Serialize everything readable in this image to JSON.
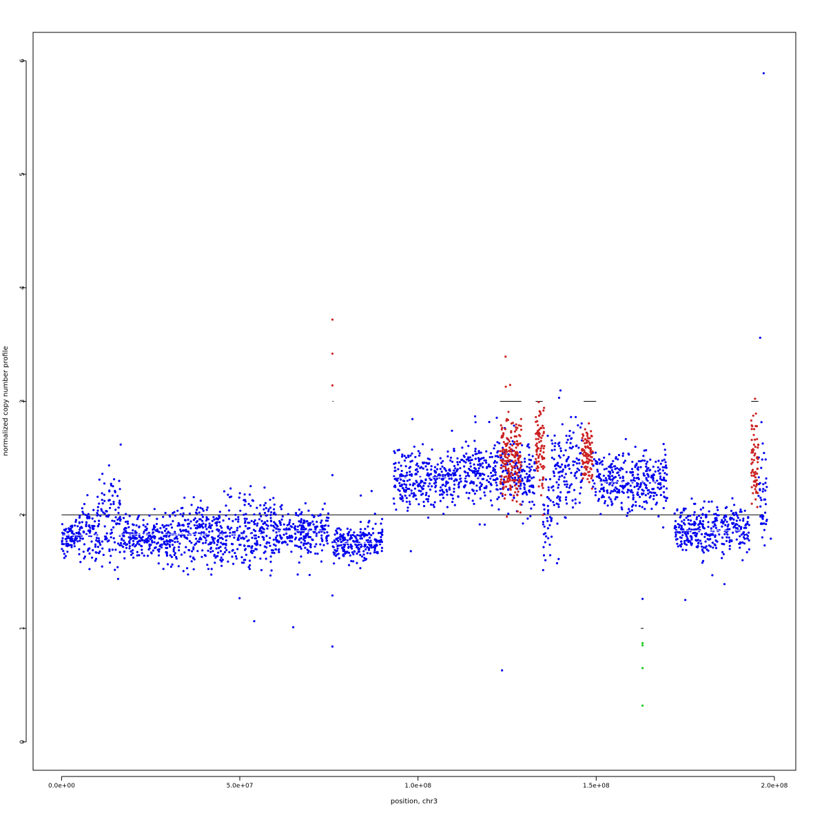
{
  "chart_data": {
    "type": "scatter",
    "title": "",
    "xlabel": "position, chr3",
    "ylabel": "normalized copy number profile",
    "xlim": [
      -8000000,
      206000000
    ],
    "ylim": [
      -0.25,
      6.25
    ],
    "x_ticks": [
      0,
      50000000,
      100000000,
      150000000,
      200000000
    ],
    "x_tick_labels": [
      "0.0e+00",
      "5.0e+07",
      "1.0e+08",
      "1.5e+08",
      "2.0e+08"
    ],
    "y_ticks": [
      0,
      1,
      2,
      3,
      4,
      5,
      6
    ],
    "y_tick_labels": [
      "0",
      "1",
      "2",
      "3",
      "4",
      "5",
      "6"
    ],
    "grid": false,
    "colors": {
      "normal": "#0000ee",
      "gain": "#cc2222",
      "loss": "#22cc22",
      "copy_number_line": "#000000",
      "median_line": "#ffffff"
    },
    "segments_blue": [
      {
        "x0": 0,
        "x1": 5000000,
        "level": 1.8,
        "sd": 0.08
      },
      {
        "x0": 5000000,
        "x1": 10000000,
        "level": 1.85,
        "sd": 0.12
      },
      {
        "x0": 10000000,
        "x1": 17000000,
        "level": 1.95,
        "sd": 0.18
      },
      {
        "x0": 17000000,
        "x1": 30000000,
        "level": 1.8,
        "sd": 0.08
      },
      {
        "x0": 30000000,
        "x1": 40000000,
        "level": 1.85,
        "sd": 0.13
      },
      {
        "x0": 40000000,
        "x1": 50000000,
        "level": 1.82,
        "sd": 0.14
      },
      {
        "x0": 50000000,
        "x1": 60000000,
        "level": 1.85,
        "sd": 0.15
      },
      {
        "x0": 60000000,
        "x1": 75000000,
        "level": 1.85,
        "sd": 0.1
      },
      {
        "x0": 76000000,
        "x1": 90000000,
        "level": 1.75,
        "sd": 0.08
      },
      {
        "x0": 93000000,
        "x1": 110000000,
        "level": 2.3,
        "sd": 0.14
      },
      {
        "x0": 110000000,
        "x1": 122000000,
        "level": 2.38,
        "sd": 0.13
      },
      {
        "x0": 122000000,
        "x1": 128000000,
        "level": 2.4,
        "sd": 0.18
      },
      {
        "x0": 128000000,
        "x1": 133000000,
        "level": 2.3,
        "sd": 0.15
      },
      {
        "x0": 135000000,
        "x1": 137500000,
        "level": 1.95,
        "sd": 0.2
      },
      {
        "x0": 137500000,
        "x1": 146000000,
        "level": 2.4,
        "sd": 0.2
      },
      {
        "x0": 149000000,
        "x1": 162000000,
        "level": 2.3,
        "sd": 0.13
      },
      {
        "x0": 162000000,
        "x1": 170000000,
        "level": 2.28,
        "sd": 0.14
      },
      {
        "x0": 172000000,
        "x1": 193000000,
        "level": 1.87,
        "sd": 0.1
      },
      {
        "x0": 195500000,
        "x1": 198000000,
        "level": 2.2,
        "sd": 0.2
      }
    ],
    "segments_red": [
      {
        "x0": 123000000,
        "x1": 129000000,
        "level": 2.5,
        "sd": 0.2
      },
      {
        "x0": 133000000,
        "x1": 135500000,
        "level": 2.6,
        "sd": 0.2
      },
      {
        "x0": 146000000,
        "x1": 149000000,
        "level": 2.55,
        "sd": 0.14
      },
      {
        "x0": 193500000,
        "x1": 195500000,
        "level": 2.45,
        "sd": 0.2
      }
    ],
    "outliers_blue": [
      {
        "x": 65000000,
        "y": 1.01
      },
      {
        "x": 76000000,
        "y": 0.84
      },
      {
        "x": 76000000,
        "y": 1.29
      },
      {
        "x": 76000000,
        "y": 2.35
      },
      {
        "x": 87000000,
        "y": 2.21
      },
      {
        "x": 98000000,
        "y": 1.68
      },
      {
        "x": 163000000,
        "y": 1.26
      },
      {
        "x": 175000000,
        "y": 1.25
      },
      {
        "x": 186000000,
        "y": 1.39
      },
      {
        "x": 196000000,
        "y": 3.56
      },
      {
        "x": 197000000,
        "y": 5.89
      },
      {
        "x": 199000000,
        "y": 1.79
      }
    ],
    "outliers_red": [
      {
        "x": 76000000,
        "y": 3.72
      },
      {
        "x": 76000000,
        "y": 3.42
      },
      {
        "x": 76000000,
        "y": 3.14
      }
    ],
    "outliers_green": [
      {
        "x": 163000000,
        "y": 0.32
      },
      {
        "x": 163000000,
        "y": 0.65
      },
      {
        "x": 163000000,
        "y": 0.85
      },
      {
        "x": 163000000,
        "y": 0.87
      }
    ],
    "copy_number_lines": [
      {
        "x0": 0,
        "x1": 197000000,
        "y": 2
      },
      {
        "x0": 123000000,
        "x1": 129000000,
        "y": 3
      },
      {
        "x0": 133000000,
        "x1": 135000000,
        "y": 3
      },
      {
        "x0": 146500000,
        "x1": 150000000,
        "y": 3
      },
      {
        "x0": 193500000,
        "x1": 195500000,
        "y": 3
      },
      {
        "x0": 76000000,
        "x1": 76300000,
        "y": 3
      },
      {
        "x0": 162500000,
        "x1": 163300000,
        "y": 1
      }
    ],
    "median_lines": [
      {
        "x0": 0,
        "x1": 17000000,
        "y": 1.82
      },
      {
        "x0": 17000000,
        "x1": 60000000,
        "y": 1.83
      },
      {
        "x0": 60000000,
        "x1": 75000000,
        "y": 1.86
      },
      {
        "x0": 76000000,
        "x1": 90000000,
        "y": 1.75
      },
      {
        "x0": 93000000,
        "x1": 122000000,
        "y": 2.33
      },
      {
        "x0": 149000000,
        "x1": 170000000,
        "y": 2.29
      },
      {
        "x0": 172000000,
        "x1": 193000000,
        "y": 1.86
      }
    ]
  }
}
